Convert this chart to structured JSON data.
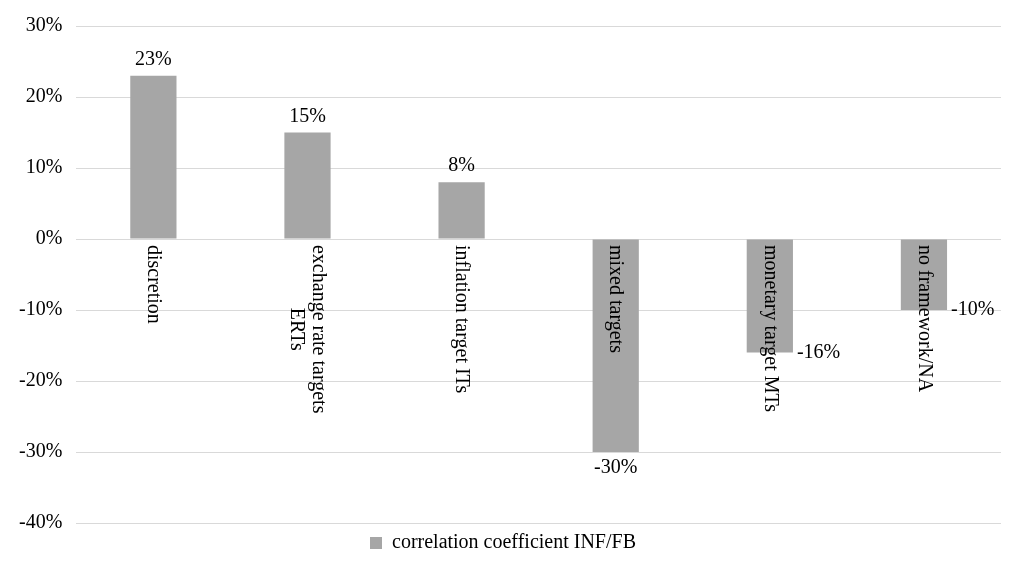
{
  "chart_data": {
    "type": "bar",
    "categories": [
      "discretion",
      "exchange rate targets ERTs",
      "inflation target ITs",
      "mixed targets",
      "monetary target MTs",
      "no framework/NA"
    ],
    "series": [
      {
        "name": "correlation coefficient INF/FB",
        "color": "#a6a6a6",
        "values": [
          23,
          15,
          8,
          -30,
          -16,
          -10
        ]
      }
    ],
    "value_labels": [
      "23%",
      "15%",
      "8%",
      "-30%",
      "-16%",
      "-10%"
    ],
    "ylim": [
      -40,
      30
    ],
    "yticks": [
      {
        "value": -40,
        "label": "-40%"
      },
      {
        "value": -30,
        "label": "-30%"
      },
      {
        "value": -20,
        "label": "-20%"
      },
      {
        "value": -10,
        "label": "-10%"
      },
      {
        "value": 0,
        "label": "0%"
      },
      {
        "value": 10,
        "label": "10%"
      },
      {
        "value": 20,
        "label": "20%"
      },
      {
        "value": 30,
        "label": "30%"
      }
    ],
    "grid": "y",
    "legend": "bottom"
  }
}
